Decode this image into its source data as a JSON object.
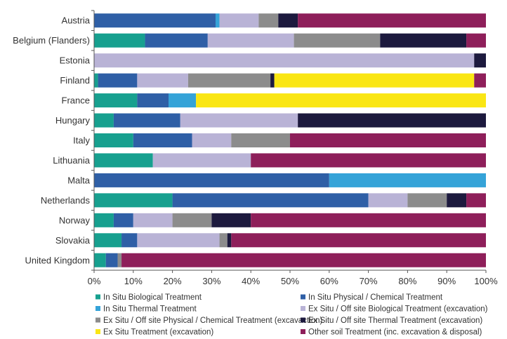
{
  "chart_data": {
    "type": "bar",
    "orientation": "horizontal",
    "stacked": true,
    "categories": [
      "Austria",
      "Belgium (Flanders)",
      "Estonia",
      "Finland",
      "France",
      "Hungary",
      "Italy",
      "Lithuania",
      "Malta",
      "Netherlands",
      "Norway",
      "Slovakia",
      "United Kingdom"
    ],
    "series": [
      {
        "name": "In Situ Biological Treatment",
        "color": "#17a08f",
        "values": [
          0,
          13,
          0,
          1,
          11,
          5,
          10,
          15,
          0,
          20,
          5,
          7,
          3
        ]
      },
      {
        "name": "In Situ Physical / Chemical Treatment",
        "color": "#2f5fa6",
        "values": [
          31,
          16,
          0,
          10,
          8,
          17,
          15,
          0,
          60,
          50,
          5,
          4,
          3
        ]
      },
      {
        "name": "In Situ Thermal Treatment",
        "color": "#35a3d8",
        "values": [
          1,
          0,
          0,
          0,
          7,
          0,
          0,
          0,
          40,
          0,
          0,
          0,
          0
        ]
      },
      {
        "name": "Ex Situ / Off site Biological Treatment (excavation)",
        "color": "#b9b3d6",
        "values": [
          10,
          22,
          97,
          13,
          0,
          30,
          10,
          25,
          0,
          10,
          10,
          21,
          0
        ]
      },
      {
        "name": "Ex Situ / Off site Physical / Chemical Treatment (excavaction)",
        "color": "#8c8c8c",
        "values": [
          5,
          22,
          0,
          21,
          0,
          0,
          15,
          0,
          0,
          10,
          10,
          2,
          1
        ]
      },
      {
        "name": "Ex Situ / Off site Thermal Treatment (excavation)",
        "color": "#1d1a3e",
        "values": [
          5,
          22,
          3,
          1,
          0,
          48,
          0,
          0,
          0,
          5,
          10,
          1,
          0
        ]
      },
      {
        "name": "Ex Situ Treatment (excavation)",
        "color": "#fae614",
        "values": [
          0,
          0,
          0,
          51,
          74,
          0,
          0,
          0,
          0,
          0,
          0,
          0,
          0
        ]
      },
      {
        "name": "Other soil Treatment (inc. excavation & disposal)",
        "color": "#8e1f5a",
        "values": [
          48,
          5,
          0,
          3,
          0,
          0,
          50,
          60,
          0,
          5,
          60,
          65,
          93
        ]
      }
    ],
    "x_ticks": [
      "0%",
      "10%",
      "20%",
      "30%",
      "40%",
      "50%",
      "60%",
      "70%",
      "80%",
      "90%",
      "100%"
    ],
    "xlim": [
      0,
      100
    ],
    "xlabel": "",
    "ylabel": "",
    "title": "",
    "grid": false,
    "legend_position": "bottom"
  }
}
